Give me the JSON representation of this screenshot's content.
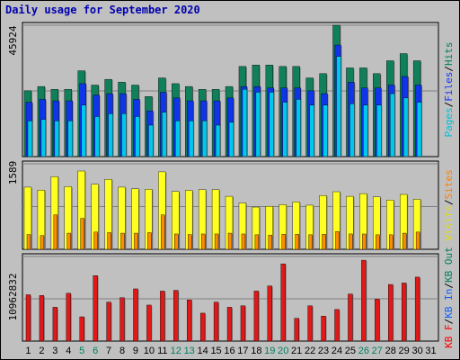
{
  "chart_data": {
    "type": "bar",
    "title": "Daily usage for September 2020",
    "categories": [
      "1",
      "2",
      "3",
      "4",
      "5",
      "6",
      "7",
      "8",
      "9",
      "10",
      "11",
      "12",
      "13",
      "14",
      "15",
      "16",
      "17",
      "18",
      "19",
      "20",
      "21",
      "22",
      "23",
      "24",
      "25",
      "26",
      "27",
      "28",
      "29",
      "30",
      "31"
    ],
    "weekend_days": [
      "5",
      "6",
      "12",
      "13",
      "19",
      "20",
      "26",
      "27"
    ],
    "panels": [
      {
        "id": "top",
        "ytick": "45924",
        "ymax": 45924,
        "legend": [
          {
            "text": "Pages",
            "color": "#00c0d8"
          },
          {
            "text": "/",
            "color": "#000000"
          },
          {
            "text": "Files",
            "color": "#1034ff"
          },
          {
            "text": "/",
            "color": "#000000"
          },
          {
            "text": "Hits",
            "color": "#008060"
          }
        ],
        "series": [
          {
            "name": "Hits",
            "color": "#10805a",
            "values": [
              23000,
              24500,
              23500,
              23500,
              30000,
              25000,
              27000,
              26000,
              25000,
              21000,
              27500,
              25500,
              24500,
              23500,
              23500,
              24500,
              31500,
              32000,
              32000,
              31500,
              31500,
              27500,
              29000,
              45924,
              31000,
              31000,
              29000,
              33500,
              36000,
              33500,
              0
            ]
          },
          {
            "name": "Files",
            "color": "#1034e8",
            "values": [
              19000,
              20000,
              19500,
              19500,
              25500,
              21500,
              22000,
              22000,
              20000,
              16000,
              22500,
              20500,
              19500,
              19500,
              19500,
              20500,
              24500,
              24500,
              24000,
              24000,
              24000,
              23000,
              22000,
              39000,
              26000,
              24000,
              24000,
              25000,
              28000,
              25000,
              0
            ]
          },
          {
            "name": "Pages",
            "color": "#00c8ec",
            "values": [
              12500,
              13000,
              12500,
              12500,
              18000,
              14000,
              15000,
              15000,
              14000,
              11000,
              15500,
              12500,
              12500,
              12500,
              11000,
              12000,
              23500,
              22500,
              22500,
              19000,
              20000,
              18000,
              18000,
              35000,
              18500,
              18000,
              18000,
              22000,
              20500,
              19000,
              0
            ]
          }
        ]
      },
      {
        "id": "mid",
        "ytick": "1589",
        "ymax": 1589,
        "legend": [
          {
            "text": "Visits",
            "color": "#e0e000"
          },
          {
            "text": "/",
            "color": "#000000"
          },
          {
            "text": "Sites",
            "color": "#ff8000"
          }
        ],
        "series": [
          {
            "name": "Visits",
            "color": "#ffff20",
            "values": [
              1155,
              1100,
              1350,
              1165,
              1455,
              1210,
              1300,
              1155,
              1125,
              1115,
              1440,
              1075,
              1095,
              1110,
              1110,
              985,
              860,
              785,
              800,
              830,
              880,
              820,
              1000,
              1070,
              985,
              1035,
              975,
              915,
              1020,
              930,
              0
            ]
          },
          {
            "name": "Sites",
            "color": "#ff8c00",
            "values": [
              275,
              255,
              640,
              300,
              575,
              320,
              310,
              300,
              300,
              310,
              640,
              285,
              275,
              285,
              285,
              300,
              285,
              270,
              265,
              280,
              280,
              270,
              280,
              330,
              285,
              285,
              270,
              270,
              300,
              320,
              0
            ]
          }
        ]
      },
      {
        "id": "bot",
        "ytick": "10962832",
        "ymax": 10962832,
        "legend": [
          {
            "text": "KB F",
            "color": "#ff0000"
          },
          {
            "text": "/",
            "color": "#000000"
          },
          {
            "text": "KB In",
            "color": "#1060ff"
          },
          {
            "text": "/",
            "color": "#000000"
          },
          {
            "text": "KB Out",
            "color": "#008060"
          }
        ],
        "series": [
          {
            "name": "KB F",
            "color": "#e01818",
            "values": [
              6300,
              6200,
              4600,
              6500,
              3300,
              8900,
              5300,
              5900,
              7100,
              4900,
              6800,
              6900,
              5600,
              3800,
              5300,
              4600,
              4800,
              6800,
              7500,
              10500,
              3100,
              4800,
              3400,
              4300,
              6400,
              11000,
              5700,
              7700,
              7900,
              8700,
              0
            ]
          }
        ]
      }
    ],
    "bottom_ymax": 11500
  }
}
